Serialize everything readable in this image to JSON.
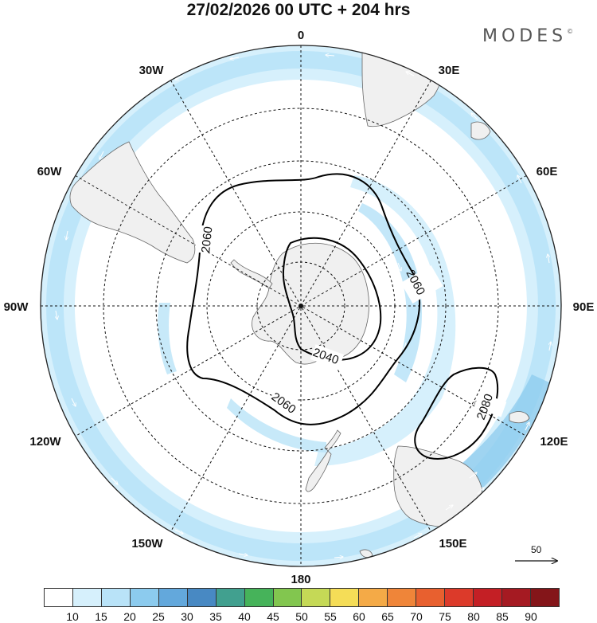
{
  "header": {
    "title": "27/02/2026  00 UTC  + 204 hrs",
    "brand": "MODES",
    "brand_mark": "©"
  },
  "map": {
    "projection": "south-polar-stereographic",
    "longitude_labels": {
      "north": "0",
      "north_east_30": "30E",
      "north_east_60": "60E",
      "east": "90E",
      "south_east_120": "120E",
      "south_east_150": "150E",
      "south": "180",
      "south_west_150": "150W",
      "south_west_120": "120W",
      "west": "90W",
      "north_west_60": "60W",
      "north_west_30": "30W"
    },
    "contours": {
      "labels": [
        "2060",
        "2060",
        "2060",
        "2040",
        "2080"
      ]
    },
    "vector_reference": {
      "label": "50"
    }
  },
  "colorbar": {
    "colors": [
      "#ffffff",
      "#d6f0fc",
      "#b9e3f8",
      "#8ccbee",
      "#63a8dc",
      "#4889c3",
      "#41a08f",
      "#46b35a",
      "#82c64f",
      "#c5d956",
      "#f5dd57",
      "#f4aa47",
      "#ef8539",
      "#e8602f",
      "#dc3a2a",
      "#c41f25",
      "#a51a22",
      "#841519"
    ],
    "ticks": [
      "10",
      "15",
      "20",
      "25",
      "30",
      "35",
      "40",
      "45",
      "50",
      "55",
      "60",
      "65",
      "70",
      "75",
      "80",
      "85",
      "90"
    ]
  },
  "colors": {
    "land": "#f0f0f0",
    "jet_light": "#d6f0fc",
    "jet_mid": "#b9e3f8",
    "jet_strong": "#8ccbee",
    "contour": "#000000"
  }
}
